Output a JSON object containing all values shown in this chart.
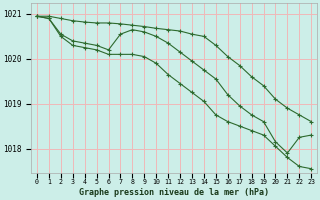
{
  "title": "Graphe pression niveau de la mer (hPa)",
  "bg_color": "#cceee8",
  "grid_color": "#f0b8b8",
  "line_color": "#2d6a2d",
  "x_labels": [
    "0",
    "1",
    "2",
    "3",
    "4",
    "5",
    "6",
    "7",
    "8",
    "9",
    "10",
    "11",
    "12",
    "13",
    "14",
    "15",
    "16",
    "17",
    "18",
    "19",
    "20",
    "21",
    "22",
    "23"
  ],
  "ylim": [
    1017.45,
    1021.25
  ],
  "yticks": [
    1018,
    1019,
    1020,
    1021
  ],
  "line1": [
    1020.95,
    1020.95,
    1020.9,
    1020.85,
    1020.82,
    1020.8,
    1020.8,
    1020.78,
    1020.75,
    1020.72,
    1020.68,
    1020.65,
    1020.62,
    1020.55,
    1020.5,
    1020.3,
    1020.05,
    1019.85,
    1019.6,
    1019.4,
    1019.1,
    1018.9,
    1018.75,
    1018.6
  ],
  "line2": [
    1020.95,
    1020.9,
    1020.55,
    1020.4,
    1020.35,
    1020.3,
    1020.2,
    1020.55,
    1020.65,
    1020.6,
    1020.5,
    1020.35,
    1020.15,
    1019.95,
    1019.75,
    1019.55,
    1019.2,
    1018.95,
    1018.75,
    1018.6,
    1018.15,
    1017.9,
    1018.25,
    1018.3
  ],
  "line3": [
    1020.95,
    1020.9,
    1020.5,
    1020.3,
    1020.25,
    1020.2,
    1020.1,
    1020.1,
    1020.1,
    1020.05,
    1019.9,
    1019.65,
    1019.45,
    1019.25,
    1019.05,
    1018.75,
    1018.6,
    1018.5,
    1018.4,
    1018.3,
    1018.05,
    1017.8,
    1017.6,
    1017.55
  ]
}
